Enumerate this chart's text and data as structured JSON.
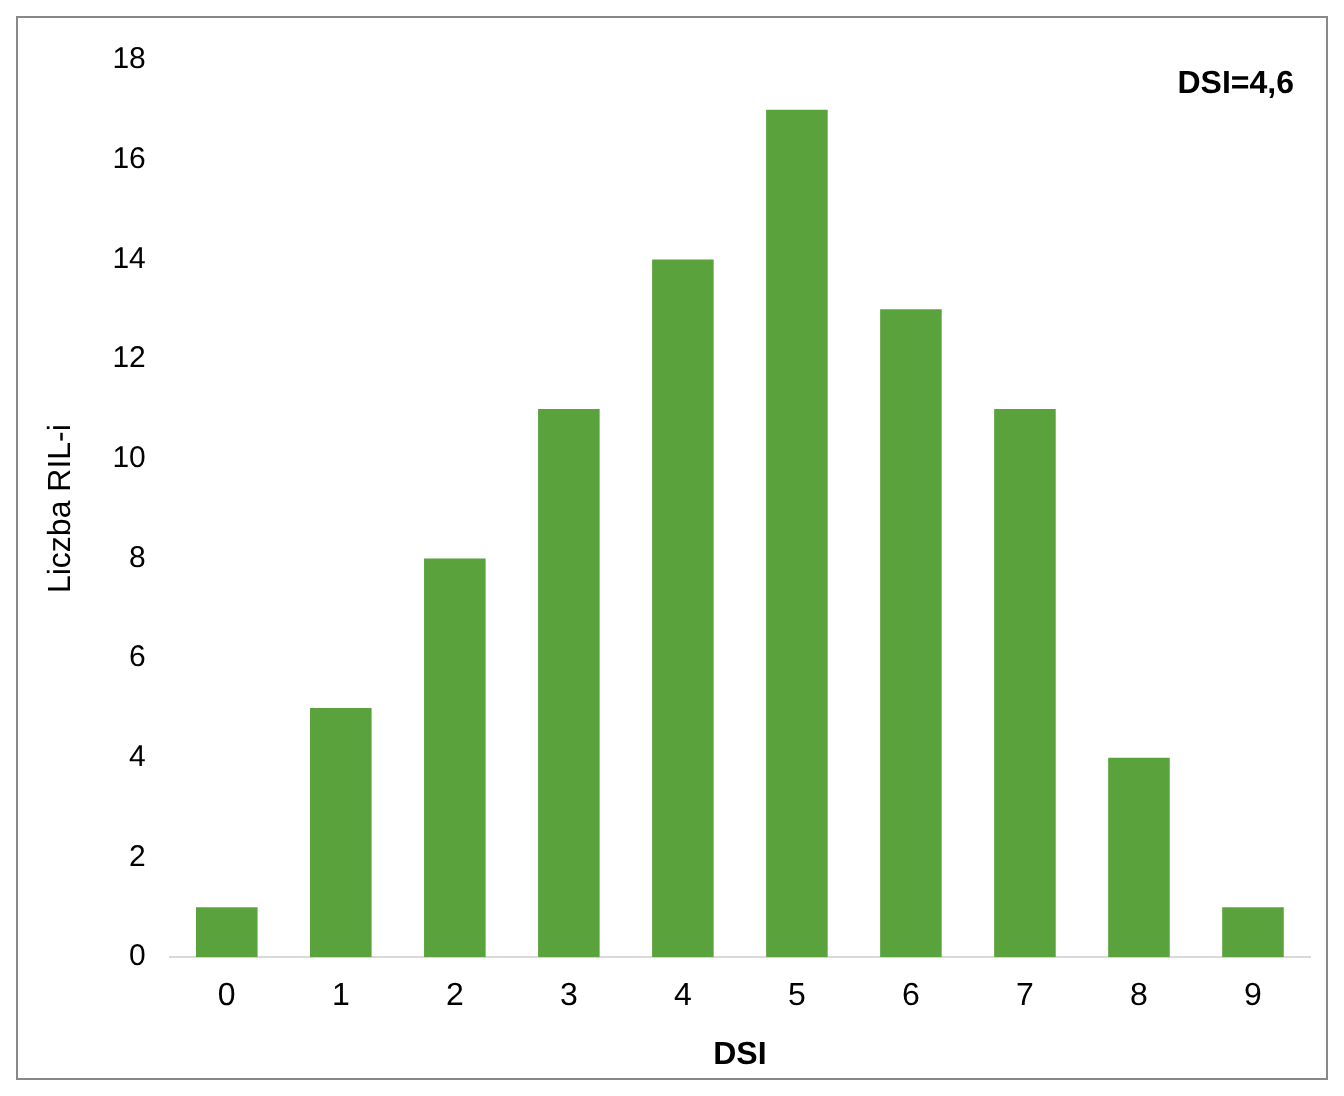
{
  "chart_data": {
    "type": "bar",
    "xlabel": "DSI",
    "ylabel": "Liczba RIL-i",
    "categories": [
      "0",
      "1",
      "2",
      "3",
      "4",
      "5",
      "6",
      "7",
      "8",
      "9"
    ],
    "values": [
      1,
      5,
      8,
      11,
      14,
      17,
      13,
      11,
      4,
      1
    ],
    "color": "#5aa33c",
    "ylim": [
      0,
      18
    ],
    "yticks": [
      0,
      2,
      4,
      6,
      8,
      10,
      12,
      14,
      16,
      18
    ],
    "grid": false,
    "legend": false,
    "annotations": [
      "DSI=4,6"
    ]
  }
}
